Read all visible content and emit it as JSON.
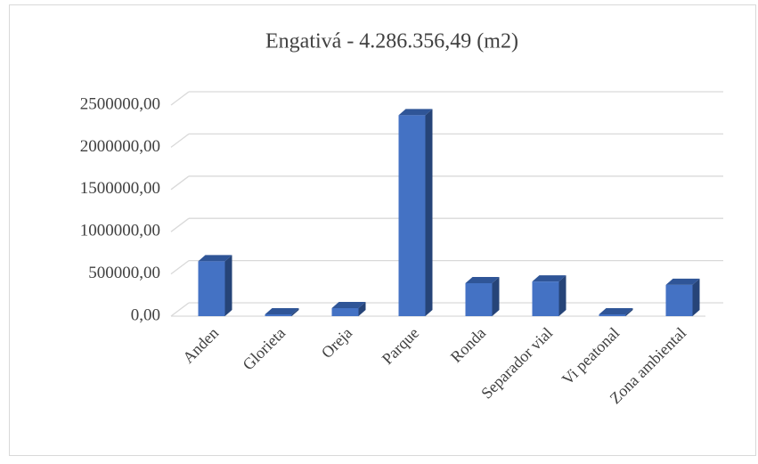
{
  "chart_data": {
    "type": "bar3d",
    "title": "Engativá - 4.286.356,49  (m2)",
    "categories": [
      "Anden",
      "Glorieta",
      "Oreja",
      "Parque",
      "Ronda",
      "Separador vial",
      "Vi peatonal",
      "Zona ambiental"
    ],
    "values": [
      650000,
      10000,
      95000,
      2380000,
      390000,
      410000,
      5000,
      370000
    ],
    "color": "#4472c4",
    "ylim": [
      0,
      2500000
    ],
    "yticks": [
      {
        "value": 0,
        "label": "0,00"
      },
      {
        "value": 500000,
        "label": "500000,00"
      },
      {
        "value": 1000000,
        "label": "1000000,00"
      },
      {
        "value": 1500000,
        "label": "1500000,00"
      },
      {
        "value": 2000000,
        "label": "2000000,00"
      },
      {
        "value": 2500000,
        "label": "2500000,00"
      }
    ],
    "grid": true
  }
}
